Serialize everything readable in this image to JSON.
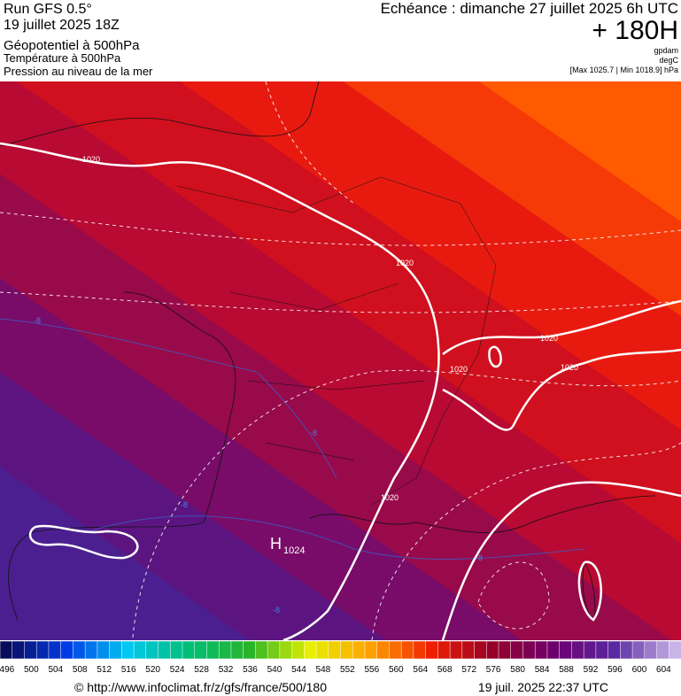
{
  "header": {
    "run": "Run GFS 0.5°",
    "date": "19 juillet 2025 18Z",
    "title": "Géopotentiel à 500hPa",
    "subtitle_1": "Température à 500hPa",
    "subtitle_2": "Pression au niveau de la mer",
    "valid": "Echéance : dimanche 27 juillet 2025 6h UTC",
    "lead": "+ 180H",
    "unit_1": "gpdam",
    "unit_2": "degC",
    "range": "[Max 1025.7 | Min 1018.9] hPa"
  },
  "map_labels": {
    "isobars": [
      "1020",
      "1020",
      "1020",
      "1020",
      "1020",
      "1020"
    ],
    "high": "H",
    "high_value": "1024",
    "isotherms": [
      "-8",
      "-8",
      "-8",
      "-8",
      "-8"
    ]
  },
  "colorbar": {
    "labels": [
      496,
      500,
      504,
      508,
      512,
      516,
      520,
      524,
      528,
      532,
      536,
      540,
      544,
      548,
      552,
      556,
      560,
      564,
      568,
      572,
      576,
      580,
      584,
      588,
      592,
      596,
      600,
      604
    ]
  },
  "footer": {
    "source": "© http://www.infoclimat.fr/z/gfs/france/500/180",
    "timestamp": "19 juil. 2025 22:37 UTC"
  }
}
